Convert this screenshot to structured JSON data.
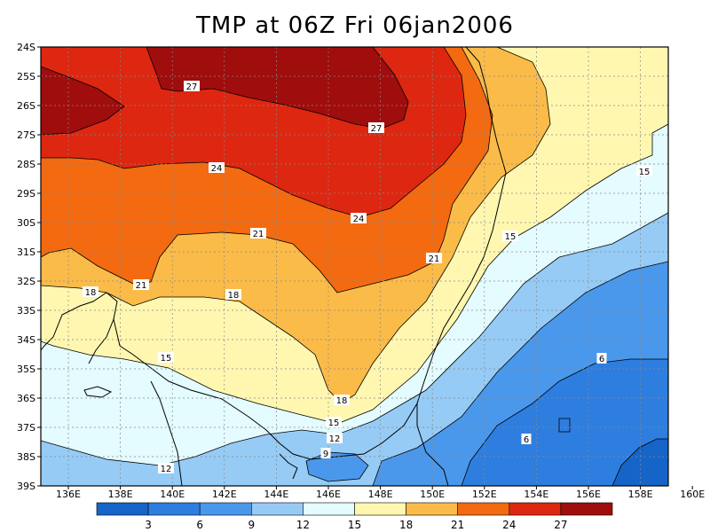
{
  "title": "TMP at 06Z Fri 06jan2006",
  "lat_labels": [
    "24S",
    "25S",
    "26S",
    "27S",
    "28S",
    "29S",
    "30S",
    "31S",
    "32S",
    "33S",
    "34S",
    "35S",
    "36S",
    "37S",
    "38S",
    "39S"
  ],
  "lon_labels": [
    "136E",
    "138E",
    "140E",
    "142E",
    "144E",
    "146E",
    "148E",
    "150E",
    "152E",
    "154E",
    "156E",
    "158E",
    "160E"
  ],
  "colorbar": {
    "ticks": [
      "3",
      "6",
      "9",
      "12",
      "15",
      "18",
      "21",
      "24",
      "27"
    ],
    "colors": [
      "#1565c8",
      "#2e7ee0",
      "#4a98ec",
      "#96cbf5",
      "#e4fbff",
      "#fff7b0",
      "#fbbb48",
      "#f36a10",
      "#dd2710",
      "#a00d0d"
    ]
  },
  "contour_labels": [
    {
      "text": "27"
    },
    {
      "text": "27"
    },
    {
      "text": "24"
    },
    {
      "text": "24"
    },
    {
      "text": "21"
    },
    {
      "text": "21"
    },
    {
      "text": "21"
    },
    {
      "text": "18"
    },
    {
      "text": "18"
    },
    {
      "text": "18"
    },
    {
      "text": "15"
    },
    {
      "text": "15"
    },
    {
      "text": "15"
    },
    {
      "text": "15"
    },
    {
      "text": "12"
    },
    {
      "text": "12"
    },
    {
      "text": "9"
    },
    {
      "text": "6"
    },
    {
      "text": "6"
    }
  ]
}
